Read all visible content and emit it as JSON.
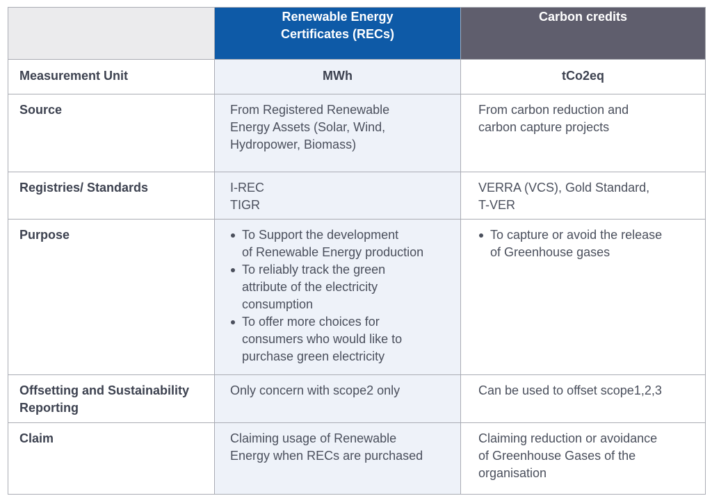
{
  "header": {
    "corner": "",
    "recs_title": [
      "Renewable Energy",
      "Certificates (RECs)"
    ],
    "carbon_title": "Carbon credits"
  },
  "rows": {
    "unit": {
      "label": "Measurement Unit",
      "recs": "MWh",
      "carbon": "tCo2eq"
    },
    "source": {
      "label": "Source",
      "recs": [
        "From Registered Renewable",
        "Energy Assets (Solar, Wind,",
        "Hydropower, Biomass)"
      ],
      "carbon": [
        "From carbon reduction and",
        "carbon capture projects"
      ]
    },
    "registries": {
      "label": "Registries/ Standards",
      "recs": [
        "I-REC",
        "TIGR"
      ],
      "carbon": [
        "VERRA (VCS), Gold Standard,",
        "T-VER"
      ]
    },
    "purpose": {
      "label": "Purpose",
      "recs": [
        [
          "To Support the development",
          "of Renewable Energy production"
        ],
        [
          "To reliably track the green",
          "attribute of the electricity",
          "consumption"
        ],
        [
          "To offer more choices for",
          "consumers who would like to",
          "purchase green electricity"
        ]
      ],
      "carbon": [
        [
          "To capture or avoid the release",
          "of Greenhouse gases"
        ]
      ]
    },
    "offsetting": {
      "label": [
        "Offsetting and Sustainability",
        "Reporting"
      ],
      "recs": "Only concern with scope2 only",
      "carbon": "Can be used to offset scope1,2,3"
    },
    "claim": {
      "label": "Claim",
      "recs": [
        "Claiming usage of Renewable",
        "Energy when RECs are purchased"
      ],
      "carbon": [
        "Claiming reduction or avoidance",
        "of Greenhouse Gases of the",
        "organisation"
      ]
    }
  }
}
